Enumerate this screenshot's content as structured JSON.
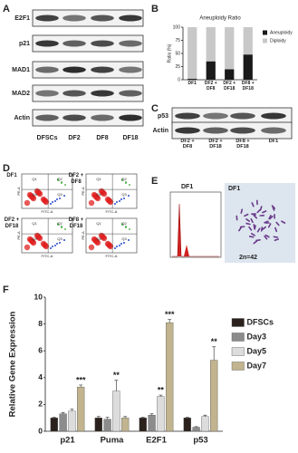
{
  "panels": {
    "labels": [
      "A",
      "B",
      "C",
      "D",
      "E",
      "F"
    ],
    "a": {
      "rows": [
        "E2F1",
        "p21",
        "MAD1",
        "MAD2",
        "Actin"
      ],
      "columns": [
        "DFSCs",
        "DF2",
        "DF8",
        "DF18"
      ]
    },
    "c": {
      "rows": [
        "p53",
        "Actin"
      ],
      "columns": [
        "DF2 + DF8",
        "DF2 + DF18",
        "DF8 + DF18",
        "DF1"
      ]
    },
    "d": {
      "plots": [
        "DF1",
        "DF2 + DF8",
        "DF2 + DF18",
        "DF8 + DF18"
      ],
      "quadrants": [
        "Q1",
        "Q2",
        "Q3",
        "Q4"
      ],
      "x_label": "FITC-A",
      "y_label": "PE-A"
    },
    "e": {
      "histogram_label": "DF1",
      "karyotype_label": "DF1",
      "karyotype": "2n=42"
    }
  },
  "chart_data": [
    {
      "type": "bar",
      "stacked": true,
      "title": "Aneuploidy Ratio",
      "ylabel": "Ratio (%)",
      "categories": [
        "DF1",
        "DF2 + DF8",
        "DF2 + DF18",
        "DF8 + DF18"
      ],
      "series": [
        {
          "name": "Aneuploidy",
          "color": "#1a1a1a",
          "values": [
            2,
            35,
            20,
            48
          ]
        },
        {
          "name": "Diploidy",
          "color": "#c8c8c8",
          "values": [
            98,
            65,
            80,
            52
          ]
        }
      ],
      "ylim": [
        0,
        100
      ],
      "yticks": [
        0,
        25,
        50,
        75,
        100
      ],
      "legend": "right"
    },
    {
      "type": "bar",
      "stacked": false,
      "ylabel": "Relative Gene Expression",
      "categories": [
        "p21",
        "Puma",
        "E2F1",
        "p53"
      ],
      "series": [
        {
          "name": "DFSCs",
          "color": "#2b211c",
          "values": [
            1,
            1,
            1,
            1
          ],
          "errors": [
            0.05,
            0.1,
            0.05,
            0.05
          ]
        },
        {
          "name": "Day3",
          "color": "#8c8c8c",
          "values": [
            1.3,
            0.9,
            1.2,
            0.3
          ],
          "errors": [
            0.1,
            0.15,
            0.1,
            0.05
          ]
        },
        {
          "name": "Day5",
          "color": "#dcdcdc",
          "values": [
            1.5,
            3.0,
            2.6,
            1.1
          ],
          "errors": [
            0.15,
            0.8,
            0.1,
            0.1
          ],
          "stars": [
            null,
            "**",
            "**",
            null
          ]
        },
        {
          "name": "Day7",
          "color": "#c1b48e",
          "values": [
            3.3,
            1.0,
            8.1,
            5.3
          ],
          "errors": [
            0.15,
            0.1,
            0.25,
            1.0
          ],
          "stars": [
            "***",
            null,
            "***",
            "**"
          ]
        }
      ],
      "ylim": [
        0,
        10
      ],
      "yticks": [
        0,
        2,
        4,
        6,
        8,
        10
      ],
      "legend": "right"
    }
  ]
}
